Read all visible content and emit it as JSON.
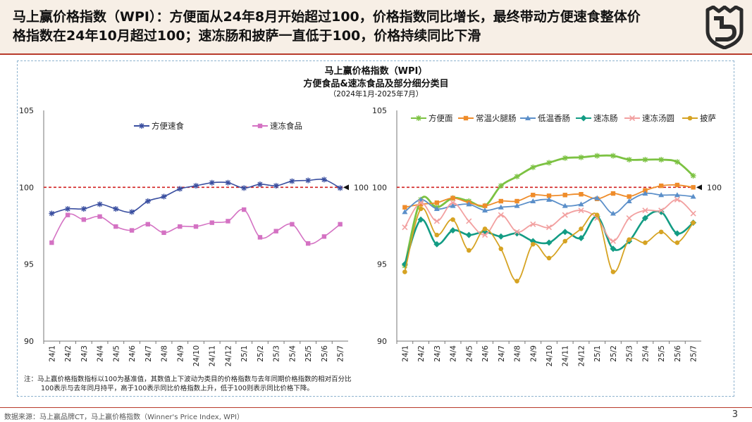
{
  "header": {
    "title": "马上赢价格指数（WPI）：方便面从24年8月开始超过100，价格指数同比增长，最终带动方便速食整体价\n格指数在24年10月超过100；速冻肠和披萨一直低于100，价格持续同比下滑"
  },
  "chart_titles": {
    "line1": "马上赢价格指数（WPI）",
    "line2": "方便食品&速冻食品及部分细分类目",
    "line3": "（2024年1月-2025年7月）"
  },
  "colors": {
    "brand_red": "#b83a2a",
    "header_bg": "#f7efe6",
    "reference_line": "#d11f1f"
  },
  "chart_data": [
    {
      "type": "line",
      "categories": [
        "24/1",
        "24/2",
        "24/3",
        "24/4",
        "24/5",
        "24/6",
        "24/7",
        "24/8",
        "24/9",
        "24/10",
        "24/11",
        "24/12",
        "25/1",
        "25/2",
        "25/3",
        "25/4",
        "25/5",
        "25/6",
        "25/7"
      ],
      "ylim": [
        90,
        105
      ],
      "yticks": [
        "90",
        "95",
        "100",
        "105"
      ],
      "reference_line": {
        "value": 100,
        "label": "100"
      },
      "legend_position": "top",
      "series": [
        {
          "name": "方便速食",
          "color": "#3a4fa0",
          "marker": "star",
          "values": [
            98.3,
            98.6,
            98.6,
            98.9,
            98.6,
            98.4,
            99.1,
            99.4,
            99.9,
            100.1,
            100.3,
            100.3,
            99.95,
            100.2,
            100.1,
            100.4,
            100.45,
            100.5,
            99.95
          ]
        },
        {
          "name": "速冻食品",
          "color": "#d472c3",
          "marker": "square",
          "values": [
            96.4,
            98.2,
            97.9,
            98.1,
            97.45,
            97.2,
            97.6,
            97.05,
            97.45,
            97.45,
            97.7,
            97.8,
            98.55,
            96.75,
            97.15,
            97.6,
            96.35,
            96.8,
            97.6
          ]
        }
      ]
    },
    {
      "type": "line",
      "categories": [
        "24/1",
        "24/2",
        "24/3",
        "24/4",
        "24/5",
        "24/6",
        "24/7",
        "24/8",
        "24/9",
        "24/10",
        "24/11",
        "24/12",
        "25/1",
        "25/2",
        "25/3",
        "25/4",
        "25/5",
        "25/6",
        "25/7"
      ],
      "ylim": [
        90,
        105
      ],
      "yticks": [
        "90",
        "95",
        "100",
        "105"
      ],
      "reference_line": {
        "value": 100,
        "label": "100"
      },
      "legend_position": "top",
      "series": [
        {
          "name": "方便面",
          "color": "#7cc242",
          "marker": "star",
          "values": [
            94.9,
            99.2,
            98.7,
            99.3,
            99.1,
            98.8,
            100.1,
            100.7,
            101.3,
            101.6,
            101.9,
            101.95,
            102.05,
            102.05,
            101.8,
            101.8,
            101.8,
            101.65,
            100.75
          ]
        },
        {
          "name": "常温火腿肠",
          "color": "#ef8c2a",
          "marker": "square",
          "values": [
            98.7,
            98.9,
            99.0,
            99.3,
            99.0,
            98.8,
            99.1,
            99.1,
            99.5,
            99.45,
            99.5,
            99.55,
            99.25,
            99.6,
            99.4,
            99.8,
            100.1,
            100.15,
            100.0
          ]
        },
        {
          "name": "低温香肠",
          "color": "#5b8fc9",
          "marker": "triangle",
          "values": [
            98.4,
            99.2,
            98.6,
            98.8,
            98.9,
            98.5,
            98.7,
            98.8,
            99.1,
            99.2,
            98.8,
            98.9,
            99.3,
            98.3,
            99.1,
            99.6,
            99.5,
            99.5,
            99.4
          ]
        },
        {
          "name": "速冻肠",
          "color": "#139c84",
          "marker": "diamond",
          "values": [
            95.0,
            97.9,
            96.3,
            97.2,
            96.9,
            97.1,
            96.8,
            97.0,
            96.5,
            96.4,
            97.1,
            96.7,
            98.1,
            96.0,
            96.5,
            98.0,
            98.4,
            97.0,
            97.7
          ]
        },
        {
          "name": "速冻汤圆",
          "color": "#f2a0a0",
          "marker": "x",
          "values": [
            97.4,
            99.0,
            97.8,
            99.0,
            97.8,
            96.9,
            98.2,
            97.1,
            97.6,
            97.4,
            98.2,
            98.5,
            98.0,
            96.5,
            98.0,
            98.5,
            98.5,
            99.2,
            98.3
          ]
        },
        {
          "name": "披萨",
          "color": "#d6a323",
          "marker": "circle",
          "values": [
            94.5,
            98.6,
            96.9,
            97.9,
            95.9,
            97.3,
            96.0,
            93.9,
            96.3,
            95.4,
            96.5,
            97.3,
            98.2,
            94.5,
            96.6,
            96.4,
            97.1,
            96.4,
            97.7
          ]
        }
      ]
    }
  ],
  "note": {
    "line1": "注：马上赢价格指数指标以100为基准值，其数值上下波动为类目的价格指数与去年同期价格指数的相对百分比",
    "line2": "100表示与去年同月持平，高于100表示同比价格指数上升，低于100则表示同比价格下降。"
  },
  "footer": {
    "source": "数据来源：马上赢品牌CT，马上赢价格指数（Winner's  Price Index, WPI）",
    "page_number": "3"
  },
  "logo": {
    "icon": "shield-logo-icon"
  }
}
